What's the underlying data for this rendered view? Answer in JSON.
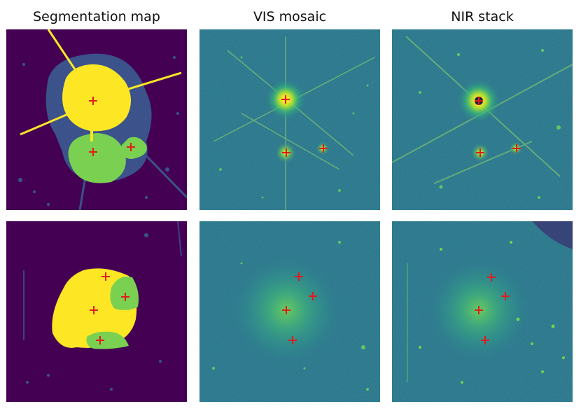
{
  "figure": {
    "columns": [
      {
        "title": "Segmentation map"
      },
      {
        "title": "VIS mosaic"
      },
      {
        "title": "NIR stack"
      }
    ],
    "rows": [
      {
        "markers": 3
      },
      {
        "markers": 4
      }
    ]
  },
  "colors": {
    "seg_background": "#440154",
    "seg_halo": "#3b528b",
    "seg_primary": "#fde725",
    "seg_secondary": "#7ad151",
    "img_background": "#2c7a8c",
    "img_core": "#fde725",
    "marker": "#e31a1c"
  }
}
